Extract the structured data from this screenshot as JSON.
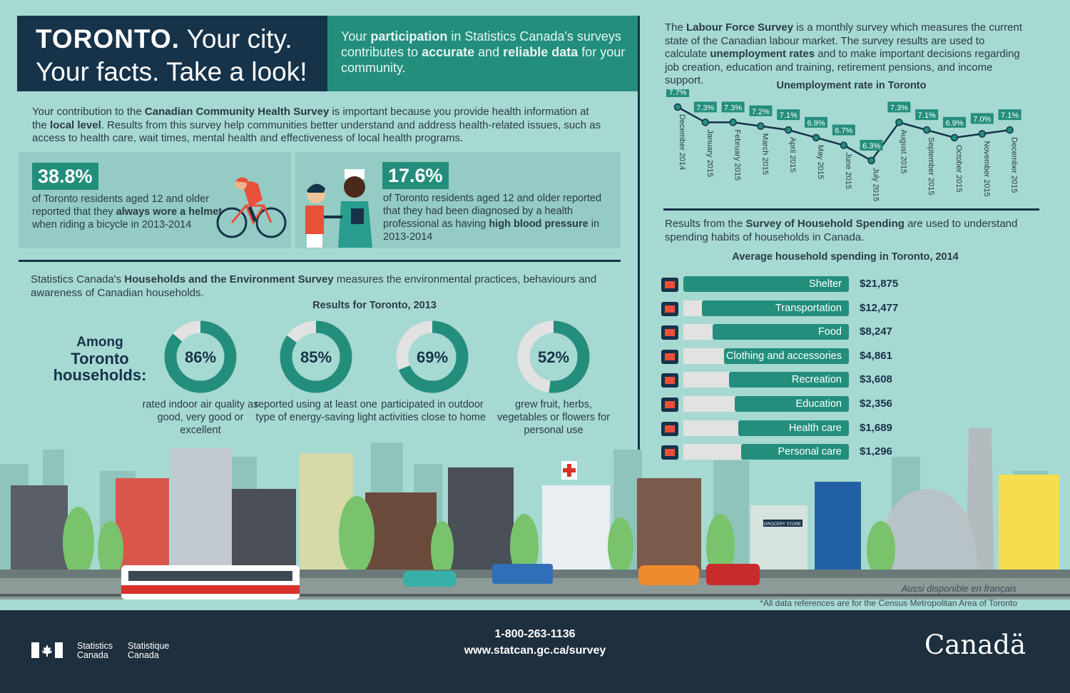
{
  "header": {
    "title_bold": "TORONTO.",
    "title_rest1": " Your city.",
    "title_line2": "Your facts. Take a look!",
    "subtitle": {
      "p1": "Your ",
      "b1": "participation",
      "p2": " in Statistics Canada's surveys contributes to ",
      "b2": "accurate",
      "p3": " and ",
      "b3": "reliable data",
      "p4": " for your community."
    }
  },
  "cchs": {
    "p1": "Your contribution to the ",
    "b1": "Canadian Community Health Survey",
    "p2": " is important because you provide health information at the ",
    "b2": "local level",
    "p3": ". Results from this survey help communities better understand and address health-related issues, such as access to health care, wait times, mental health and effectiveness of local health programs."
  },
  "stat1": {
    "pct": "38.8%",
    "p1": "of Toronto residents aged 12 and older reported that they ",
    "b1": "always wore a helmet",
    "p2": " when riding a bicycle in 2013-2014"
  },
  "stat2": {
    "pct": "17.6%",
    "p1": "of Toronto residents aged 12 and older reported that they had been diagnosed by a health professional as having ",
    "b1": "high blood pressure",
    "p2": " in 2013-2014"
  },
  "hes": {
    "p1": "Statistics Canada's ",
    "b1": "Households and the Environment Survey",
    "p2": " measures the environmental practices, behaviours and awareness of Canadian households.",
    "results_title": "Results for Toronto, 2013",
    "among_l1": "Among",
    "among_l2": "Toronto",
    "among_l3": "households:",
    "donuts": [
      {
        "pct": 86,
        "label_text": "86%",
        "desc": "rated indoor air quality as good, very good or excellent"
      },
      {
        "pct": 85,
        "label_text": "85%",
        "desc": "reported using at least one type of energy-saving light"
      },
      {
        "pct": 69,
        "label_text": "69%",
        "desc": "participated in outdoor activities close to home"
      },
      {
        "pct": 52,
        "label_text": "52%",
        "desc": "grew fruit, herbs, vegetables or flowers for personal use"
      }
    ]
  },
  "lfs": {
    "p1": "The ",
    "b1": "Labour Force Survey",
    "p2": " is a monthly survey which measures the current state of the Canadian labour market. The survey results are used to calculate ",
    "b2": "unemployment rates",
    "p3": " and to make important decisions regarding job creation, education and training, retirement pensions, and income support."
  },
  "chart_data": {
    "type": "line",
    "title": "Unemployment rate in Toronto",
    "categories": [
      "December 2014",
      "January 2015",
      "February 2015",
      "March 2015",
      "April 2015",
      "May 2015",
      "June 2015",
      "July 2015",
      "August 2015",
      "September 2015",
      "October 2015",
      "November 2015",
      "December 2015"
    ],
    "values": [
      7.7,
      7.3,
      7.3,
      7.2,
      7.1,
      6.9,
      6.7,
      6.3,
      7.3,
      7.1,
      6.9,
      7.0,
      7.1
    ],
    "value_labels": [
      "7.7%",
      "7.3%",
      "7.3%",
      "7.2%",
      "7.1%",
      "6.9%",
      "6.7%",
      "6.3%",
      "7.3%",
      "7.1%",
      "6.9%",
      "7.0%",
      "7.1%"
    ],
    "ylim": [
      6.3,
      7.7
    ]
  },
  "shs": {
    "p1": "Results from the ",
    "b1": "Survey of Household Spending",
    "p2": " are used to understand spending habits of households in Canada.",
    "title": "Average household spending in Toronto, 2014",
    "items": [
      {
        "label": "Shelter",
        "amount": "$21,875",
        "value": 21875,
        "icon": "building-icon"
      },
      {
        "label": "Transportation",
        "amount": "$12,477",
        "value": 12477,
        "icon": "car-icon"
      },
      {
        "label": "Food",
        "amount": "$8,247",
        "value": 8247,
        "icon": "grocery-basket-icon"
      },
      {
        "label": "Clothing and accessories",
        "amount": "$4,861",
        "value": 4861,
        "icon": "dress-icon"
      },
      {
        "label": "Recreation",
        "amount": "$3,608",
        "value": 3608,
        "icon": "cyclist-icon"
      },
      {
        "label": "Education",
        "amount": "$2,356",
        "value": 2356,
        "icon": "graduation-cap-icon"
      },
      {
        "label": "Health care",
        "amount": "$1,689",
        "value": 1689,
        "icon": "first-aid-icon"
      },
      {
        "label": "Personal care",
        "amount": "$1,296",
        "value": 1296,
        "icon": "personal-care-icon"
      }
    ]
  },
  "city": {
    "grocery_sign": "GROCERY STORE"
  },
  "notes": {
    "french": "Aussi disponible en français",
    "cma": "*All data references are for the Census Metropolitan Area of Toronto"
  },
  "footer": {
    "phone": "1-800-263-1136",
    "url": "www.statcan.gc.ca/survey",
    "sc_en_1": "Statistics",
    "sc_en_2": "Canada",
    "sc_fr_1": "Statistique",
    "sc_fr_2": "Canada",
    "wordmark": "Canadä"
  },
  "colors": {
    "background": "#a6d9d2",
    "navy": "#16334a",
    "teal": "#248e7d",
    "footer": "#1e2f3e"
  }
}
